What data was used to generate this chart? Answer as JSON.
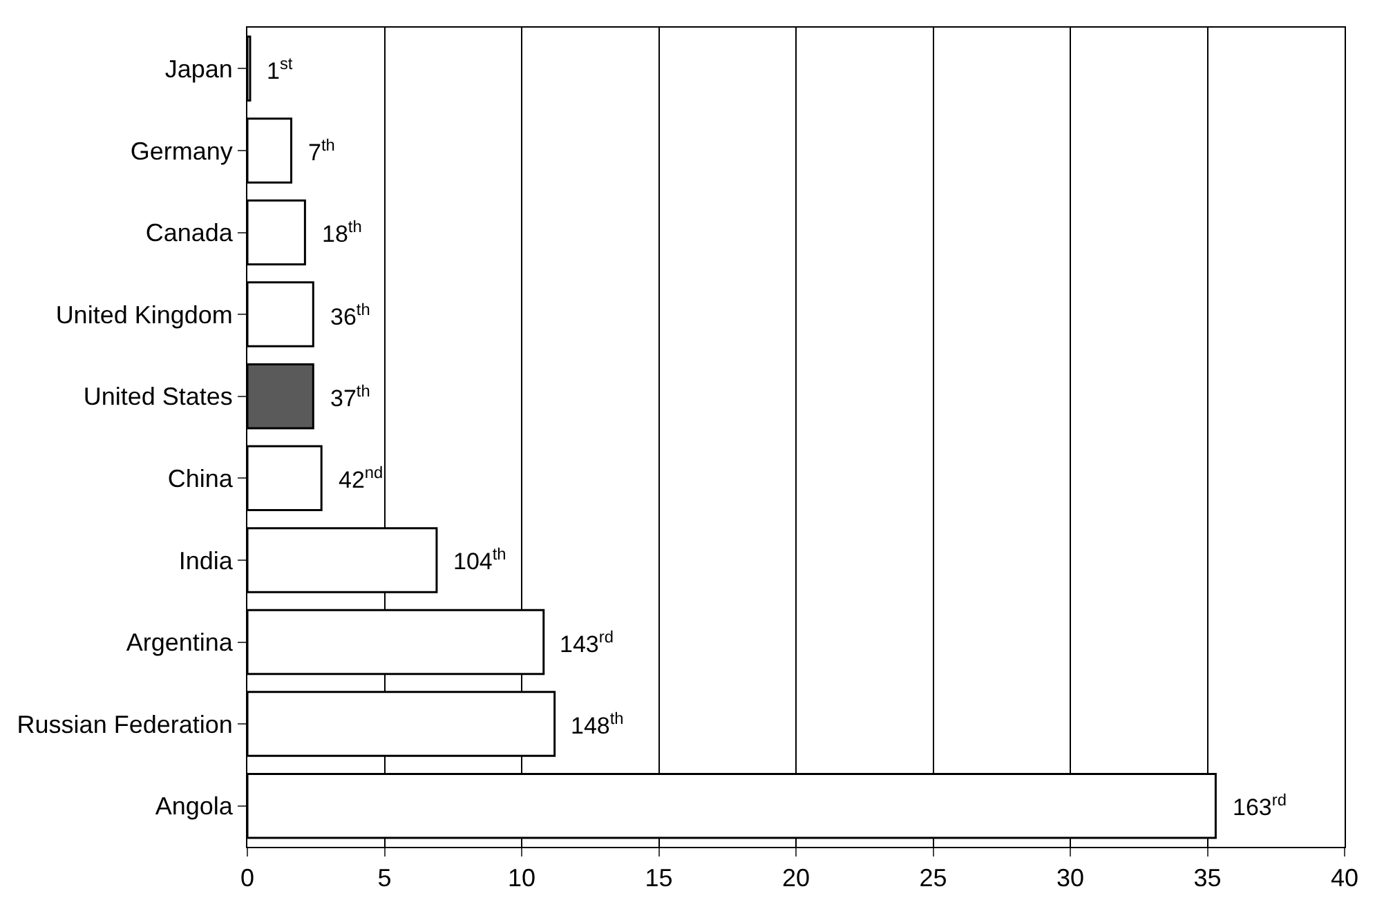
{
  "chart_data": {
    "type": "bar",
    "orientation": "horizontal",
    "categories": [
      "Japan",
      "Germany",
      "Canada",
      "United Kingdom",
      "United States",
      "China",
      "India",
      "Argentina",
      "Russian Federation",
      "Angola"
    ],
    "values": [
      0.1,
      1.6,
      2.1,
      2.4,
      2.4,
      2.7,
      6.9,
      10.8,
      11.2,
      35.3
    ],
    "colors": [
      "#ffffff",
      "#ffffff",
      "#ffffff",
      "#ffffff",
      "#5a5a5a",
      "#ffffff",
      "#ffffff",
      "#ffffff",
      "#ffffff",
      "#ffffff"
    ],
    "annotations": [
      {
        "text": "1$^{st}$",
        "x": 0.1,
        "y": "Japan"
      },
      {
        "text": "7$^{th}$",
        "x": 1.6,
        "y": "Germany"
      },
      {
        "text": "18$^{th}$",
        "x": 2.1,
        "y": "Canada"
      },
      {
        "text": "36$^{th}$",
        "x": 2.4,
        "y": "United Kingdom"
      },
      {
        "text": "37$^{th}$",
        "x": 2.4,
        "y": "United States"
      },
      {
        "text": "42$^{nd}$",
        "x": 2.7,
        "y": "China"
      },
      {
        "text": "104$^{th}$",
        "x": 6.9,
        "y": "India"
      },
      {
        "text": "143$^{rd}$",
        "x": 10.8,
        "y": "Argentina"
      },
      {
        "text": "148$^{th}$",
        "x": 11.2,
        "y": "Russian Federation"
      },
      {
        "text": "163$^{rd}$",
        "x": 35.3,
        "y": "Angola"
      }
    ],
    "xlim": [
      0,
      40
    ],
    "xticks": [
      0,
      5,
      10,
      15,
      20,
      25,
      30,
      35,
      40
    ],
    "grid": "x",
    "legend": false
  }
}
